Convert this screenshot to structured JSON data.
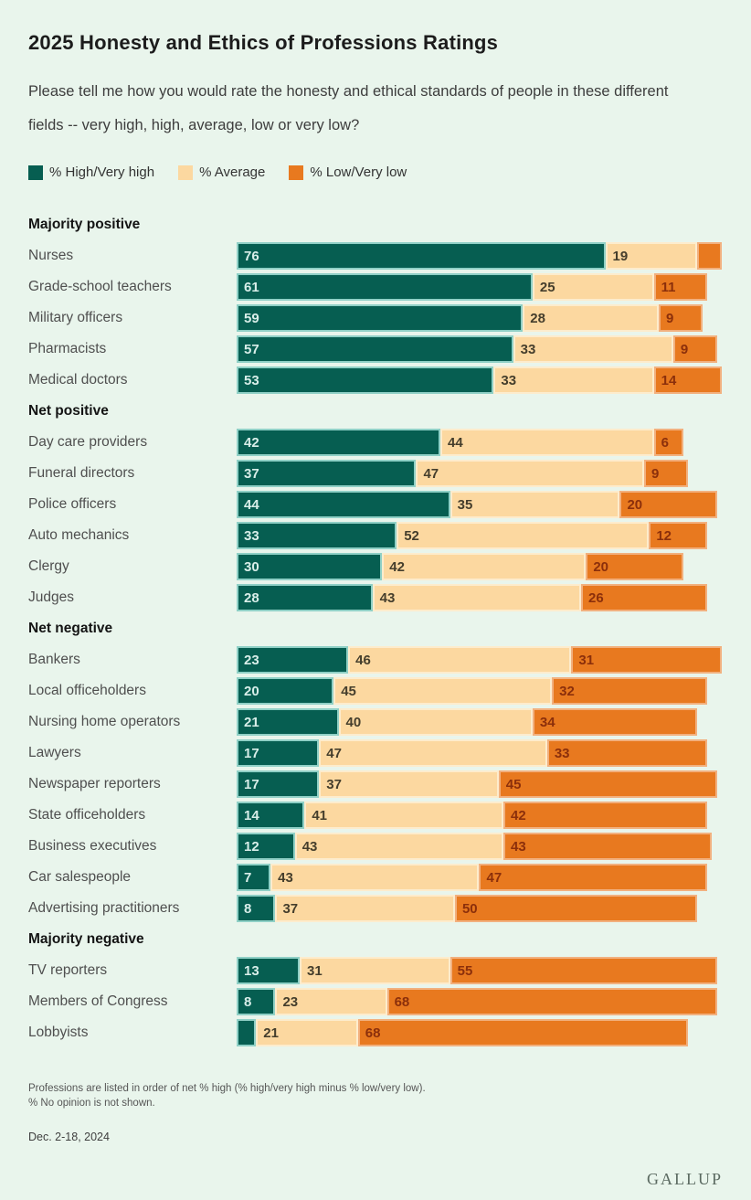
{
  "title": "2025 Honesty and Ethics of Professions Ratings",
  "subtitle": "Please tell me how you would rate the honesty and ethical standards of people in these different fields -- very high, high, average, low or very low?",
  "legend": {
    "items": [
      {
        "key": "high",
        "label": "% High/Very high"
      },
      {
        "key": "avg",
        "label": "% Average"
      },
      {
        "key": "low",
        "label": "% Low/Very low"
      }
    ]
  },
  "colors": {
    "background": "#e9f5ec",
    "high": {
      "fill": "#065e51",
      "border": "#8fd0c6",
      "text": "#d8eee9"
    },
    "avg": {
      "fill": "#fcd8a0",
      "border": "#fdeccd",
      "text": "#453e2c"
    },
    "low": {
      "fill": "#e8791f",
      "border": "#f2b07e",
      "text": "#8b2f0b"
    }
  },
  "chart_data": {
    "type": "bar",
    "orientation": "horizontal-stacked",
    "series": [
      "% High/Very high",
      "% Average",
      "% Low/Very low"
    ],
    "xlim": [
      0,
      100
    ],
    "grid": false,
    "legend_position": "top",
    "groups": [
      {
        "label": "Majority positive",
        "rows": [
          {
            "label": "Nurses",
            "values": [
              76,
              19,
              5
            ],
            "show": [
              true,
              true,
              false
            ]
          },
          {
            "label": "Grade-school teachers",
            "values": [
              61,
              25,
              11
            ],
            "show": [
              true,
              true,
              true
            ]
          },
          {
            "label": "Military officers",
            "values": [
              59,
              28,
              9
            ],
            "show": [
              true,
              true,
              true
            ]
          },
          {
            "label": "Pharmacists",
            "values": [
              57,
              33,
              9
            ],
            "show": [
              true,
              true,
              true
            ]
          },
          {
            "label": "Medical doctors",
            "values": [
              53,
              33,
              14
            ],
            "show": [
              true,
              true,
              true
            ]
          }
        ]
      },
      {
        "label": "Net positive",
        "rows": [
          {
            "label": "Day care providers",
            "values": [
              42,
              44,
              6
            ],
            "show": [
              true,
              true,
              true
            ]
          },
          {
            "label": "Funeral directors",
            "values": [
              37,
              47,
              9
            ],
            "show": [
              true,
              true,
              true
            ]
          },
          {
            "label": "Police officers",
            "values": [
              44,
              35,
              20
            ],
            "show": [
              true,
              true,
              true
            ]
          },
          {
            "label": "Auto mechanics",
            "values": [
              33,
              52,
              12
            ],
            "show": [
              true,
              true,
              true
            ]
          },
          {
            "label": "Clergy",
            "values": [
              30,
              42,
              20
            ],
            "show": [
              true,
              true,
              true
            ]
          },
          {
            "label": "Judges",
            "values": [
              28,
              43,
              26
            ],
            "show": [
              true,
              true,
              true
            ]
          }
        ]
      },
      {
        "label": "Net negative",
        "rows": [
          {
            "label": "Bankers",
            "values": [
              23,
              46,
              31
            ],
            "show": [
              true,
              true,
              true
            ]
          },
          {
            "label": "Local officeholders",
            "values": [
              20,
              45,
              32
            ],
            "show": [
              true,
              true,
              true
            ]
          },
          {
            "label": "Nursing home operators",
            "values": [
              21,
              40,
              34
            ],
            "show": [
              true,
              true,
              true
            ]
          },
          {
            "label": "Lawyers",
            "values": [
              17,
              47,
              33
            ],
            "show": [
              true,
              true,
              true
            ]
          },
          {
            "label": "Newspaper reporters",
            "values": [
              17,
              37,
              45
            ],
            "show": [
              true,
              true,
              true
            ]
          },
          {
            "label": "State officeholders",
            "values": [
              14,
              41,
              42
            ],
            "show": [
              true,
              true,
              true
            ]
          },
          {
            "label": "Business executives",
            "values": [
              12,
              43,
              43
            ],
            "show": [
              true,
              true,
              true
            ]
          },
          {
            "label": "Car salespeople",
            "values": [
              7,
              43,
              47
            ],
            "show": [
              true,
              true,
              true
            ]
          },
          {
            "label": "Advertising practitioners",
            "values": [
              8,
              37,
              50
            ],
            "show": [
              true,
              true,
              true
            ]
          }
        ]
      },
      {
        "label": "Majority negative",
        "rows": [
          {
            "label": "TV reporters",
            "values": [
              13,
              31,
              55
            ],
            "show": [
              true,
              true,
              true
            ]
          },
          {
            "label": "Members of Congress",
            "values": [
              8,
              23,
              68
            ],
            "show": [
              true,
              true,
              true
            ]
          },
          {
            "label": "Lobbyists",
            "values": [
              4,
              21,
              68
            ],
            "show": [
              false,
              true,
              true
            ]
          }
        ]
      }
    ]
  },
  "footnote_line1": "Professions are listed in order of net % high (% high/very high minus % low/very low).",
  "footnote_line2": "% No opinion is not shown.",
  "date": "Dec. 2-18, 2024",
  "brand": "GALLUP"
}
